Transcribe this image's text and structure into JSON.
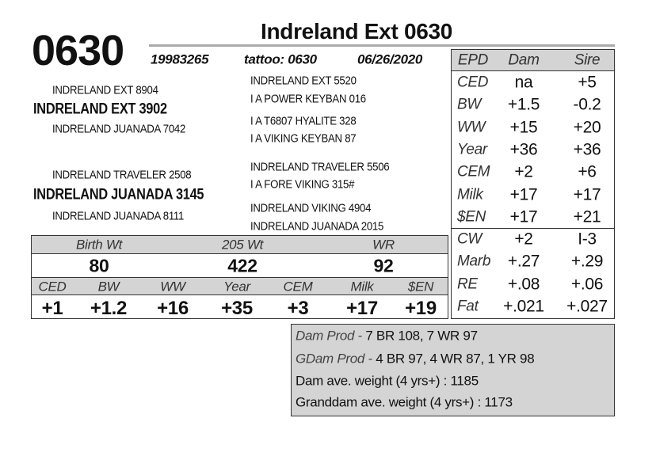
{
  "header": {
    "lot": "0630",
    "title": "Indreland Ext 0630",
    "registration": "19983265",
    "tattoo": "tattoo: 0630",
    "birth_date": "06/26/2020"
  },
  "pedigree": {
    "sire_sire": "INDRELAND EXT 8904",
    "sire": "INDRELAND EXT 3902",
    "sire_dam": "INDRELAND JUANADA 7042",
    "dam_sire": "INDRELAND TRAVELER 2508",
    "dam": "INDRELAND JUANADA 3145",
    "dam_dam": "INDRELAND JUANADA 8111",
    "great_grandparents": [
      "INDRELAND EXT 5520",
      "I A POWER KEYBAN 016",
      "I A T6807 HYALITE 328",
      "I A VIKING KEYBAN 87",
      "INDRELAND TRAVELER 5506",
      "I A FORE VIKING 315#",
      "INDRELAND VIKING 4904",
      "INDRELAND JUANADA 2015"
    ]
  },
  "performance": {
    "headers": [
      "Birth Wt",
      "205 Wt",
      "WR"
    ],
    "values": [
      "80",
      "422",
      "92"
    ]
  },
  "calf_epd": {
    "headers": [
      "CED",
      "BW",
      "WW",
      "Year",
      "CEM",
      "Milk",
      "$EN"
    ],
    "values": [
      "+1",
      "+1.2",
      "+16",
      "+35",
      "+3",
      "+17",
      "+19"
    ]
  },
  "epd_table": {
    "headers": [
      "EPD",
      "Dam",
      "Sire"
    ],
    "rows": [
      [
        "CED",
        "na",
        "+5"
      ],
      [
        "BW",
        "+1.5",
        "-0.2"
      ],
      [
        "WW",
        "+15",
        "+20"
      ],
      [
        "Year",
        "+36",
        "+36"
      ],
      [
        "CEM",
        "+2",
        "+6"
      ],
      [
        "Milk",
        "+17",
        "+17"
      ],
      [
        "$EN",
        "+17",
        "+21"
      ],
      [
        "CW",
        "+2",
        "I-3"
      ],
      [
        "Marb",
        "+.27",
        "+.29"
      ],
      [
        "RE",
        "+.08",
        "+.06"
      ],
      [
        "Fat",
        "+.021",
        "+.027"
      ]
    ]
  },
  "notes": {
    "dam_prod_label": "Dam Prod -",
    "dam_prod": "7 BR 108, 7 WR 97",
    "gdam_prod_label": "GDam Prod -",
    "gdam_prod": "4 BR 97, 4 WR 87, 1 YR 98",
    "dam_weight": "Dam ave. weight (4 yrs+) : 1185",
    "granddam_weight": "Granddam ave. weight (4 yrs+) : 1173"
  }
}
